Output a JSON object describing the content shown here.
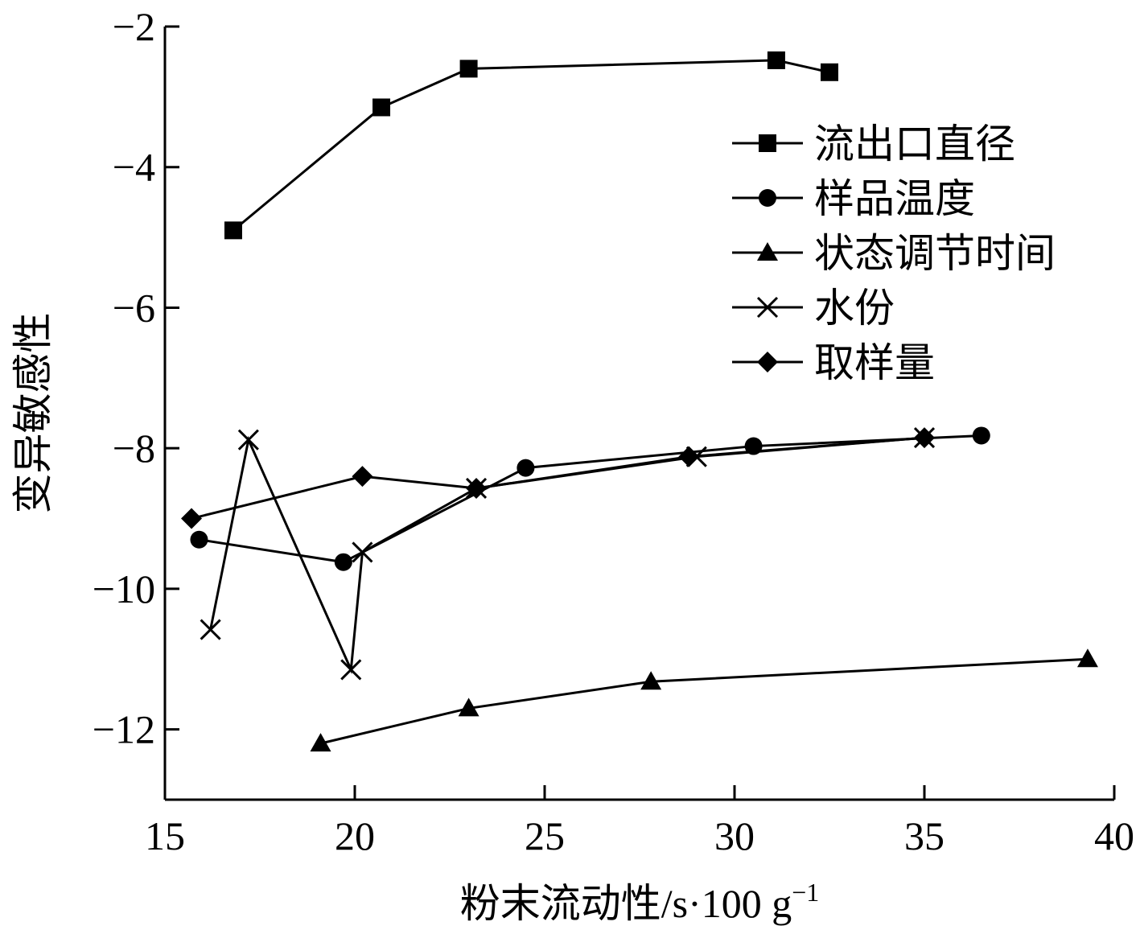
{
  "chart_data": {
    "type": "line",
    "title": "",
    "xlabel": "粉末流动性/s·100 g",
    "xlabel_superscript": "−1",
    "ylabel": "变异敏感性",
    "xlim": [
      15,
      40
    ],
    "ylim": [
      -13,
      -2
    ],
    "xticks": [
      15,
      20,
      25,
      30,
      35,
      40
    ],
    "yticks": [
      -2,
      -4,
      -6,
      -8,
      -10,
      -12
    ],
    "ytick_labels": [
      "−2",
      "−4",
      "−6",
      "−8",
      "−10",
      "−12"
    ],
    "grid": false,
    "legend_position": "top-right",
    "series": [
      {
        "name": "流出口直径",
        "marker": "square",
        "x": [
          16.8,
          20.7,
          23.0,
          31.1,
          32.5
        ],
        "y": [
          -4.9,
          -3.15,
          -2.6,
          -2.48,
          -2.65
        ]
      },
      {
        "name": "样品温度",
        "marker": "circle",
        "x": [
          15.9,
          19.7,
          24.5,
          30.5,
          36.5
        ],
        "y": [
          -9.3,
          -9.62,
          -8.28,
          -7.97,
          -7.82
        ]
      },
      {
        "name": "状态调节时间",
        "marker": "triangle",
        "x": [
          19.1,
          23.0,
          27.8,
          39.3
        ],
        "y": [
          -12.2,
          -11.7,
          -11.32,
          -11.0
        ]
      },
      {
        "name": "水份",
        "marker": "x",
        "x": [
          16.2,
          17.2,
          19.9,
          20.2,
          23.2,
          29.0,
          35.0
        ],
        "y": [
          -10.58,
          -7.88,
          -11.15,
          -9.48,
          -8.57,
          -8.12,
          -7.85
        ]
      },
      {
        "name": "取样量",
        "marker": "diamond",
        "x": [
          15.7,
          20.2,
          23.2,
          28.8,
          35.0
        ],
        "y": [
          -9.0,
          -8.4,
          -8.57,
          -8.12,
          -7.85
        ]
      }
    ]
  }
}
